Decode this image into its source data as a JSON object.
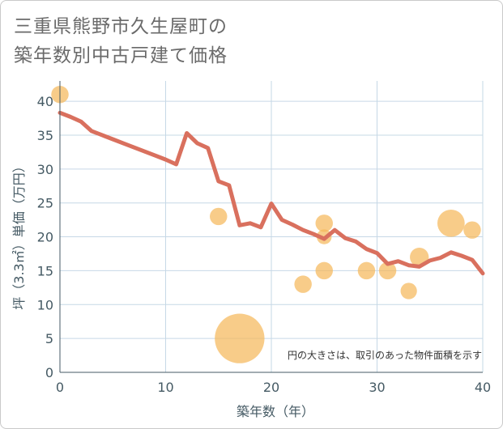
{
  "title_lines": [
    "三重県熊野市久生屋町の",
    "築年数別中古戸建て価格"
  ],
  "chart_data": {
    "type": "scatter+line",
    "xlabel": "築年数（年）",
    "ylabel": "坪（3.3㎡）単価（万円）",
    "xlim": [
      0,
      40
    ],
    "ylim": [
      0,
      43
    ],
    "xticks": [
      0,
      10,
      20,
      30,
      40
    ],
    "yticks": [
      0,
      5,
      10,
      15,
      20,
      25,
      30,
      35,
      40
    ],
    "grid": true,
    "note": "円の大きさは、取引のあった物件面積を示す",
    "colors": {
      "line": "#d9705e",
      "bubble": "#f5b85c",
      "grid": "#c6d8e6",
      "axis": "#455a64"
    },
    "bubbles": [
      {
        "x": 0,
        "y": 41,
        "r": 0.35
      },
      {
        "x": 15,
        "y": 23,
        "r": 0.35
      },
      {
        "x": 17,
        "y": 5,
        "r": 1.0
      },
      {
        "x": 23,
        "y": 13,
        "r": 0.35
      },
      {
        "x": 25,
        "y": 22,
        "r": 0.35
      },
      {
        "x": 25,
        "y": 20,
        "r": 0.3
      },
      {
        "x": 25,
        "y": 15,
        "r": 0.35
      },
      {
        "x": 29,
        "y": 15,
        "r": 0.35
      },
      {
        "x": 31,
        "y": 15,
        "r": 0.35
      },
      {
        "x": 33,
        "y": 12,
        "r": 0.33
      },
      {
        "x": 34,
        "y": 17,
        "r": 0.38
      },
      {
        "x": 37,
        "y": 22,
        "r": 0.55
      },
      {
        "x": 39,
        "y": 21,
        "r": 0.35
      }
    ],
    "line": [
      [
        0,
        38.3
      ],
      [
        1,
        37.7
      ],
      [
        2,
        37.0
      ],
      [
        3,
        35.6
      ],
      [
        4,
        35.0
      ],
      [
        5,
        34.4
      ],
      [
        6,
        33.8
      ],
      [
        7,
        33.2
      ],
      [
        8,
        32.6
      ],
      [
        9,
        32.0
      ],
      [
        10,
        31.4
      ],
      [
        11,
        30.7
      ],
      [
        12,
        35.3
      ],
      [
        13,
        33.8
      ],
      [
        14,
        33.1
      ],
      [
        15,
        28.2
      ],
      [
        16,
        27.6
      ],
      [
        17,
        21.7
      ],
      [
        18,
        22.0
      ],
      [
        19,
        21.4
      ],
      [
        20,
        24.9
      ],
      [
        21,
        22.5
      ],
      [
        22,
        21.8
      ],
      [
        23,
        21.0
      ],
      [
        24,
        20.4
      ],
      [
        25,
        19.7
      ],
      [
        26,
        21.0
      ],
      [
        27,
        19.8
      ],
      [
        28,
        19.3
      ],
      [
        29,
        18.2
      ],
      [
        30,
        17.6
      ],
      [
        31,
        16.0
      ],
      [
        32,
        16.4
      ],
      [
        33,
        15.8
      ],
      [
        34,
        15.6
      ],
      [
        35,
        16.5
      ],
      [
        36,
        16.9
      ],
      [
        37,
        17.7
      ],
      [
        38,
        17.2
      ],
      [
        39,
        16.6
      ],
      [
        40,
        14.6
      ]
    ]
  }
}
